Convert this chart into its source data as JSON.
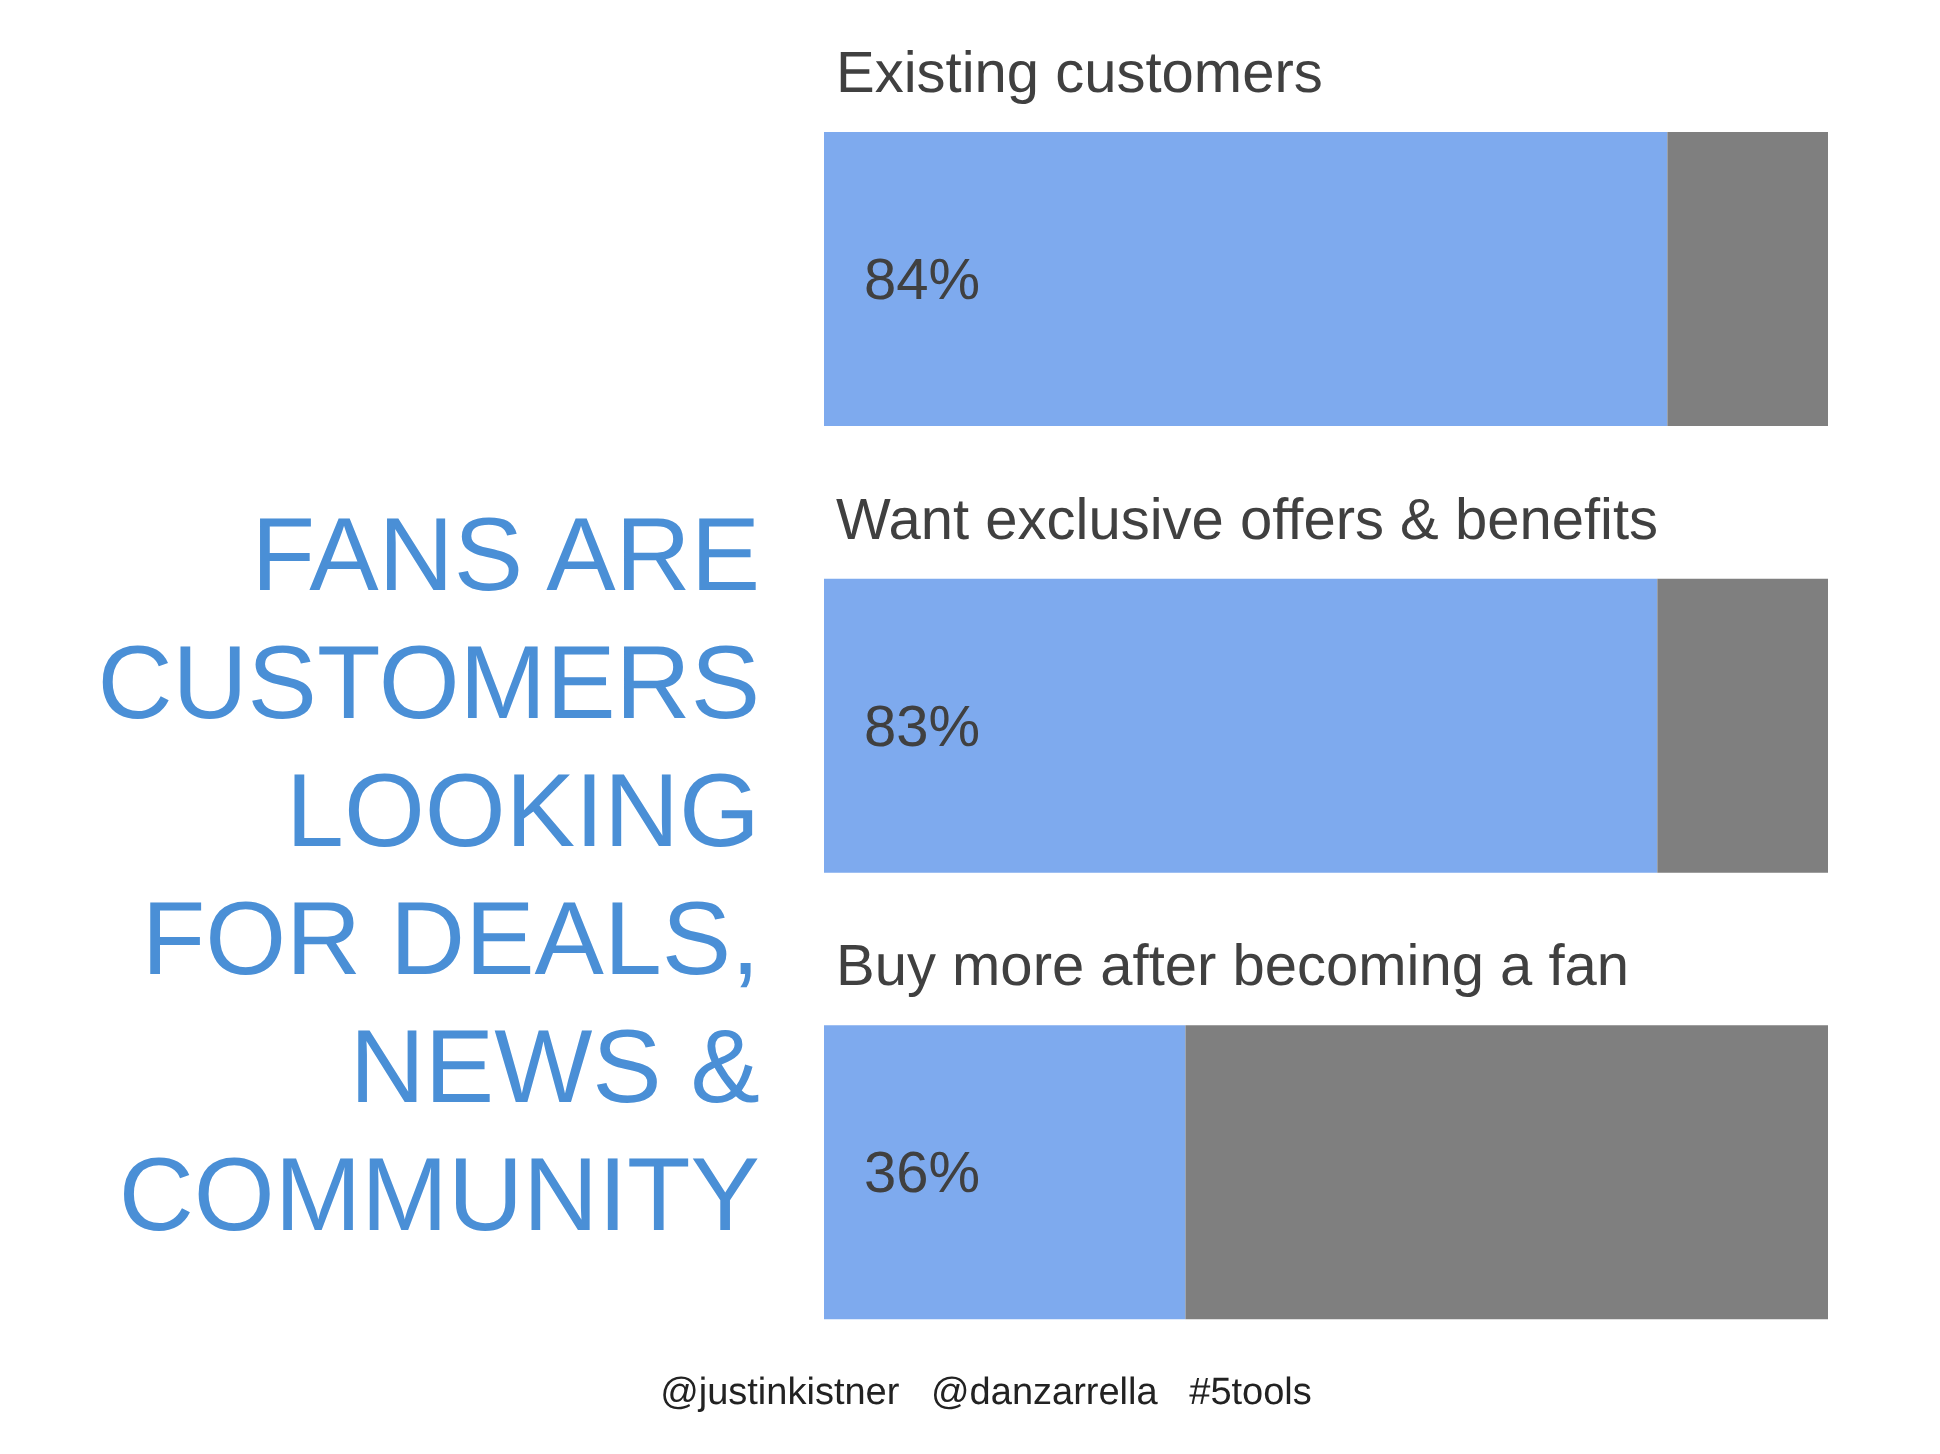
{
  "chart_data": {
    "type": "bar",
    "orientation": "horizontal",
    "stacked": true,
    "title": "FANS ARE CUSTOMERS LOOKING FOR DEALS, NEWS & COMMUNITY",
    "categories": [
      "Existing customers",
      "Want exclusive offers & benefits",
      "Buy more after becoming a fan"
    ],
    "series": [
      {
        "color": "#7eaaee",
        "values": [
          84,
          83,
          36
        ],
        "value_labels": [
          "84%",
          "83%",
          "36%"
        ]
      },
      {
        "color": "#7f7f7f",
        "values": [
          16,
          17,
          64
        ]
      }
    ],
    "xlim": [
      0,
      100
    ],
    "tick_labels": false,
    "grid": false,
    "legend": false,
    "annotations": [
      "@justinkistner   @danzarrella   #5tools"
    ]
  }
}
